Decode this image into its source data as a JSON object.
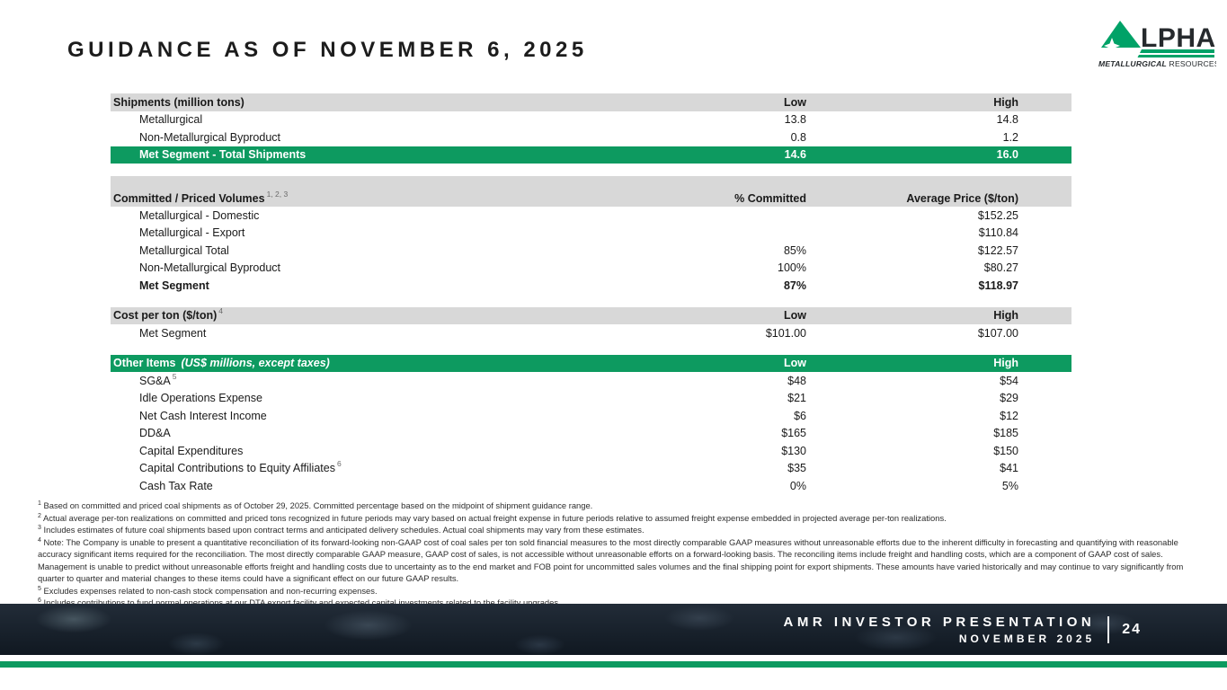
{
  "slide": {
    "title": "GUIDANCE AS OF NOVEMBER 6, 2025"
  },
  "logo": {
    "brand_rest": "LPHA",
    "tagline_bold": "METALLURGICAL",
    "tagline_rest": " RESOURCES"
  },
  "colors": {
    "brand_green": "#0d9a60",
    "logo_green": "#00a267",
    "header_gray": "#d8d8d8",
    "footer_dark": "#151d27"
  },
  "tables": [
    {
      "header": {
        "label": "Shipments (million tons)",
        "sup": "",
        "note": "",
        "col2": "Low",
        "col3": "High",
        "variant": "gray",
        "tall": false
      },
      "rows": [
        {
          "label": "Metallurgical",
          "col2": "13.8",
          "col3": "14.8"
        },
        {
          "label": "Non-Metallurgical Byproduct",
          "col2": "0.8",
          "col3": "1.2"
        },
        {
          "label": "Met Segment - Total Shipments",
          "col2": "14.6",
          "col3": "16.0",
          "highlight": true
        }
      ]
    },
    {
      "header": {
        "label": "Committed / Priced Volumes",
        "sup": "1, 2, 3",
        "note": "",
        "col2": "% Committed",
        "col3": "Average Price ($/ton)",
        "variant": "gray",
        "tall": true
      },
      "rows": [
        {
          "label": "Metallurgical - Domestic",
          "col2": "",
          "col3": "$152.25"
        },
        {
          "label": "Metallurgical - Export",
          "col2": "",
          "col3": "$110.84"
        },
        {
          "label": "Metallurgical Total",
          "col2": "85%",
          "col3": "$122.57"
        },
        {
          "label": "Non-Metallurgical Byproduct",
          "col2": "100%",
          "col3": "$80.27"
        },
        {
          "label": "Met Segment",
          "col2": "87%",
          "col3": "$118.97",
          "bold": true
        }
      ]
    },
    {
      "header": {
        "label": "Cost per ton ($/ton)",
        "sup": "4",
        "note": "",
        "col2": "Low",
        "col3": "High",
        "variant": "gray",
        "tall": false
      },
      "rows": [
        {
          "label": "Met Segment",
          "col2": "$101.00",
          "col3": "$107.00"
        }
      ]
    },
    {
      "header": {
        "label": "Other Items",
        "sup": "",
        "note": "(US$ millions, except taxes)",
        "col2": "Low",
        "col3": "High",
        "variant": "green",
        "tall": false
      },
      "rows": [
        {
          "label": "SG&A",
          "sup": "5",
          "col2": "$48",
          "col3": "$54"
        },
        {
          "label": "Idle Operations Expense",
          "col2": "$21",
          "col3": "$29"
        },
        {
          "label": "Net Cash Interest Income",
          "col2": "$6",
          "col3": "$12"
        },
        {
          "label": "DD&A",
          "col2": "$165",
          "col3": "$185"
        },
        {
          "label": "Capital Expenditures",
          "col2": "$130",
          "col3": "$150"
        },
        {
          "label": "Capital Contributions to Equity Affiliates",
          "sup": "6",
          "col2": "$35",
          "col3": "$41"
        },
        {
          "label": "Cash Tax Rate",
          "col2": "0%",
          "col3": "5%"
        }
      ]
    }
  ],
  "footnotes": [
    {
      "sup": "1",
      "text": "Based on committed and priced coal shipments as of October 29, 2025. Committed percentage based on the midpoint of shipment guidance range."
    },
    {
      "sup": "2",
      "text": "Actual average per-ton realizations on committed and priced tons recognized in future periods may vary based on actual freight expense in future periods relative to assumed freight expense embedded in projected average per-ton realizations."
    },
    {
      "sup": "3",
      "text": "Includes estimates of future coal shipments based upon contract terms and anticipated delivery schedules. Actual coal shipments may vary from these estimates."
    },
    {
      "sup": "4",
      "text": "Note: The Company is unable to present a quantitative reconciliation of its forward-looking non-GAAP cost of coal sales per ton sold financial measures to the most directly comparable GAAP measures without unreasonable efforts due to the inherent difficulty in forecasting and quantifying with reasonable accuracy significant items required for the reconciliation. The most directly comparable GAAP measure, GAAP cost of sales, is not accessible without unreasonable efforts on a forward-looking basis. The reconciling items include freight and handling costs, which are a component of GAAP cost of sales. Management is unable to predict without unreasonable efforts freight and handling costs due to uncertainty as to the end market and FOB point for uncommitted sales volumes and the final shipping point for export shipments. These amounts have varied historically and may continue to vary significantly from quarter to quarter and material changes to these items could have a significant effect on our future GAAP results."
    },
    {
      "sup": "5",
      "text": "Excludes expenses related to non-cash stock compensation and non-recurring expenses."
    },
    {
      "sup": "6",
      "text": "Includes contributions to fund normal operations at our DTA export facility and expected capital investments related to the facility upgrades."
    }
  ],
  "footer": {
    "line1": "AMR INVESTOR PRESENTATION",
    "line2": "NOVEMBER 2025",
    "separator": "|",
    "page": "24"
  }
}
